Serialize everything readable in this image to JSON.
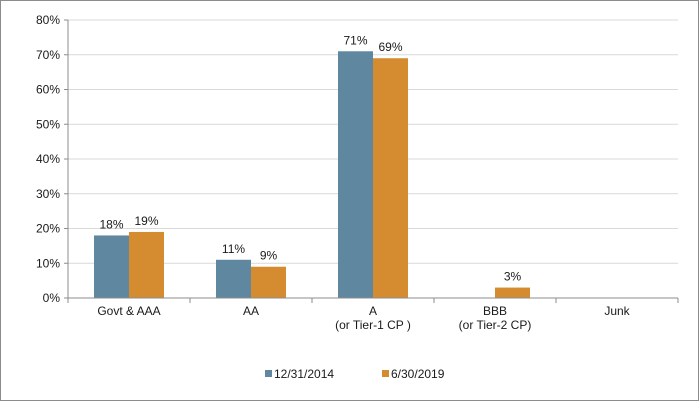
{
  "chart_data": {
    "type": "bar",
    "categories": [
      [
        "Govt & AAA"
      ],
      [
        "AA"
      ],
      [
        "A",
        "(or Tier-1 CP )"
      ],
      [
        "BBB",
        "(or Tier-2 CP)"
      ],
      [
        "Junk"
      ]
    ],
    "series": [
      {
        "name": "12/31/2014",
        "color": "#5f88a0",
        "values": [
          18,
          11,
          71,
          null,
          null
        ],
        "labels": [
          "18%",
          "11%",
          "71%",
          "",
          ""
        ]
      },
      {
        "name": "6/30/2019",
        "color": "#d58b2f",
        "values": [
          19,
          9,
          69,
          3,
          null
        ],
        "labels": [
          "19%",
          "9%",
          "69%",
          "3%",
          ""
        ]
      }
    ],
    "ylim": [
      0,
      80
    ],
    "yticks": [
      0,
      10,
      20,
      30,
      40,
      50,
      60,
      70,
      80
    ],
    "ytick_labels": [
      "0%",
      "10%",
      "20%",
      "30%",
      "40%",
      "50%",
      "60%",
      "70%",
      "80%"
    ],
    "grid": true,
    "legend_position": "bottom",
    "title": "",
    "xlabel": "",
    "ylabel": ""
  }
}
